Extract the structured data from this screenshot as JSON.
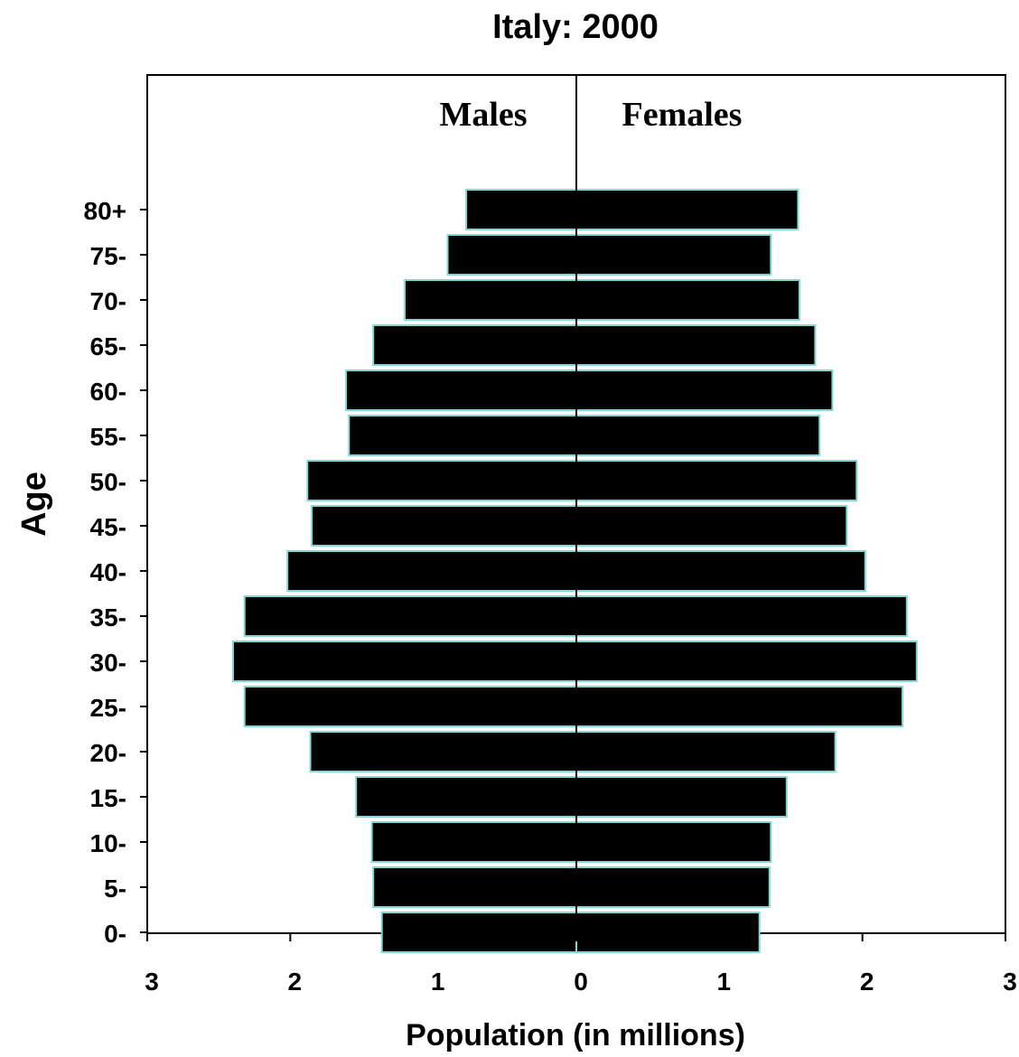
{
  "chart_data": {
    "type": "bar",
    "orientation": "horizontal",
    "title": "Italy: 2000",
    "xlabel": "Population (in millions)",
    "ylabel": "Age",
    "categories": [
      "0-",
      "5-",
      "10-",
      "15-",
      "20-",
      "25-",
      "30-",
      "35-",
      "40-",
      "45-",
      "50-",
      "55-",
      "60-",
      "65-",
      "70-",
      "75-",
      "80+"
    ],
    "series": [
      {
        "name": "Males",
        "side": "left",
        "values": [
          1.36,
          1.42,
          1.43,
          1.54,
          1.86,
          2.32,
          2.4,
          2.32,
          2.02,
          1.85,
          1.88,
          1.59,
          1.61,
          1.42,
          1.2,
          0.9,
          0.77
        ]
      },
      {
        "name": "Females",
        "side": "right",
        "values": [
          1.28,
          1.35,
          1.36,
          1.47,
          1.81,
          2.28,
          2.38,
          2.31,
          2.02,
          1.89,
          1.96,
          1.7,
          1.79,
          1.67,
          1.56,
          1.36,
          1.55
        ]
      }
    ],
    "x_ticks": [
      "3",
      "2",
      "1",
      "0",
      "1",
      "2",
      "3"
    ],
    "xlim": [
      -3,
      3
    ],
    "bar_color": "#000000",
    "bar_edge_color": "#7fd8d4",
    "grid": false,
    "legend": "in-plot labels at top"
  }
}
